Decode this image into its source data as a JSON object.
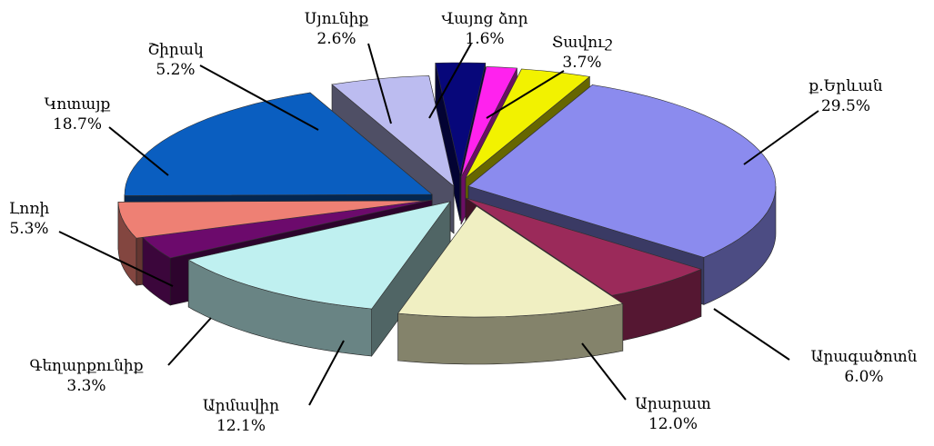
{
  "chart_data": {
    "type": "pie",
    "style": "3d-exploded",
    "title": "",
    "legend": "none",
    "unit": "%",
    "slices": [
      {
        "label": "ք.Երևան",
        "value": 29.5,
        "color": "#8b8bee"
      },
      {
        "label": "Արագածոտն",
        "value": 6.0,
        "color": "#9b2a5a"
      },
      {
        "label": "Արարատ",
        "value": 12.0,
        "color": "#f0efc2"
      },
      {
        "label": "Արմավիր",
        "value": 12.1,
        "color": "#bff0f0"
      },
      {
        "label": "Գեղարքունիք",
        "value": 3.3,
        "color": "#6c0a6c"
      },
      {
        "label": "Լոռի",
        "value": 5.3,
        "color": "#ee8074"
      },
      {
        "label": "Կոտայք",
        "value": 18.7,
        "color": "#0a5ec0"
      },
      {
        "label": "Շիրակ",
        "value": 5.2,
        "color": "#bcbcf0"
      },
      {
        "label": "Սյունիք",
        "value": 2.6,
        "color": "#07077a"
      },
      {
        "label": "Վայոց ձոր",
        "value": 1.6,
        "color": "#ff22ee"
      },
      {
        "label": "Տավուշ",
        "value": 3.7,
        "color": "#f2f200"
      }
    ]
  }
}
